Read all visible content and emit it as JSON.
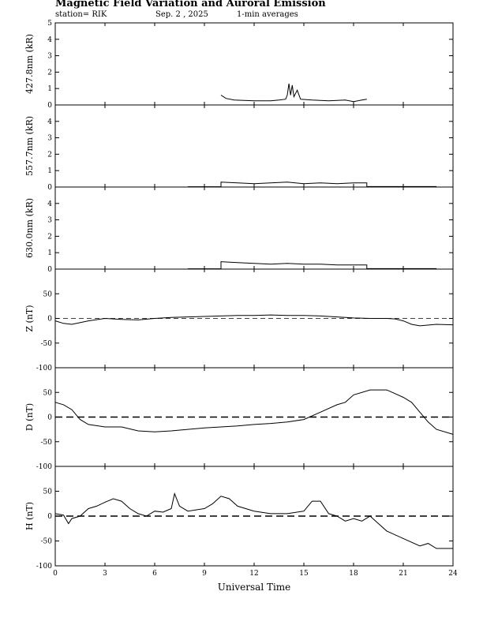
{
  "header": {
    "title": "Magnetic Field Variation and Auroral Emission",
    "station": "station= RIK",
    "date": "Sep. 2 , 2025",
    "averaging": "1-min averages"
  },
  "chart_data": [
    {
      "type": "line",
      "ylabel": "427.8nm (kR)",
      "ylim": [
        0,
        5
      ],
      "yticks": [
        0,
        1,
        2,
        3,
        4,
        5
      ],
      "xlim": [
        0,
        24
      ],
      "series": [
        {
          "values": [
            [
              10.0,
              0.6
            ],
            [
              10.3,
              0.4
            ],
            [
              10.8,
              0.3
            ],
            [
              12,
              0.25
            ],
            [
              13,
              0.25
            ],
            [
              13.5,
              0.3
            ],
            [
              13.9,
              0.35
            ],
            [
              14.0,
              0.6
            ],
            [
              14.1,
              1.3
            ],
            [
              14.2,
              0.6
            ],
            [
              14.3,
              1.2
            ],
            [
              14.4,
              0.5
            ],
            [
              14.6,
              0.9
            ],
            [
              14.8,
              0.35
            ],
            [
              15.5,
              0.3
            ],
            [
              16.5,
              0.25
            ],
            [
              17.5,
              0.3
            ],
            [
              18.0,
              0.2
            ],
            [
              18.5,
              0.3
            ],
            [
              18.8,
              0.35
            ]
          ]
        }
      ]
    },
    {
      "type": "line",
      "ylabel": "557.7nm (kR)",
      "ylim": [
        0,
        5
      ],
      "yticks": [
        0,
        1,
        2,
        3,
        4
      ],
      "xlim": [
        0,
        24
      ],
      "series": [
        {
          "values": [
            [
              8.0,
              0.02
            ],
            [
              10.0,
              0.02
            ],
            [
              10.0,
              0.3
            ],
            [
              11,
              0.25
            ],
            [
              12,
              0.2
            ],
            [
              13,
              0.25
            ],
            [
              14,
              0.3
            ],
            [
              15,
              0.2
            ],
            [
              16,
              0.25
            ],
            [
              17,
              0.2
            ],
            [
              18,
              0.25
            ],
            [
              18.8,
              0.25
            ],
            [
              18.8,
              0.03
            ],
            [
              23.0,
              0.03
            ]
          ]
        }
      ]
    },
    {
      "type": "line",
      "ylabel": "630.0nm (kR)",
      "ylim": [
        0,
        5
      ],
      "yticks": [
        0,
        1,
        2,
        3,
        4
      ],
      "xlim": [
        0,
        24
      ],
      "series": [
        {
          "values": [
            [
              8.0,
              0.02
            ],
            [
              10.0,
              0.02
            ],
            [
              10.0,
              0.45
            ],
            [
              11,
              0.4
            ],
            [
              12,
              0.35
            ],
            [
              13,
              0.3
            ],
            [
              14,
              0.35
            ],
            [
              15,
              0.3
            ],
            [
              16,
              0.3
            ],
            [
              17,
              0.25
            ],
            [
              18,
              0.25
            ],
            [
              18.8,
              0.25
            ],
            [
              18.8,
              0.03
            ],
            [
              23.0,
              0.03
            ]
          ]
        }
      ]
    },
    {
      "type": "line",
      "ylabel": "Z (nT)",
      "ylim": [
        -100,
        100
      ],
      "yticks": [
        -100,
        -50,
        0,
        50
      ],
      "xlim": [
        0,
        24
      ],
      "zero_line": "dashed",
      "series": [
        {
          "values": [
            [
              0,
              -5
            ],
            [
              0.5,
              -10
            ],
            [
              1,
              -12
            ],
            [
              2,
              -5
            ],
            [
              3,
              0
            ],
            [
              4,
              -2
            ],
            [
              5,
              -3
            ],
            [
              6,
              0
            ],
            [
              7,
              2
            ],
            [
              8,
              3
            ],
            [
              9,
              4
            ],
            [
              10,
              5
            ],
            [
              11,
              6
            ],
            [
              12,
              6
            ],
            [
              13,
              7
            ],
            [
              14,
              6
            ],
            [
              15,
              6
            ],
            [
              16,
              5
            ],
            [
              17,
              3
            ],
            [
              18,
              1
            ],
            [
              19,
              0
            ],
            [
              20,
              0
            ],
            [
              20.5,
              -1
            ],
            [
              21,
              -5
            ],
            [
              21.5,
              -12
            ],
            [
              22,
              -15
            ],
            [
              23,
              -12
            ],
            [
              24,
              -13
            ]
          ]
        }
      ]
    },
    {
      "type": "line",
      "ylabel": "D (nT)",
      "ylim": [
        -100,
        100
      ],
      "yticks": [
        -100,
        -50,
        0,
        50
      ],
      "xlim": [
        0,
        24
      ],
      "zero_line": "dashed",
      "series": [
        {
          "values": [
            [
              0,
              30
            ],
            [
              0.5,
              25
            ],
            [
              1,
              15
            ],
            [
              1.5,
              -5
            ],
            [
              2,
              -15
            ],
            [
              3,
              -20
            ],
            [
              4,
              -20
            ],
            [
              5,
              -28
            ],
            [
              6,
              -30
            ],
            [
              7,
              -28
            ],
            [
              8,
              -25
            ],
            [
              9,
              -22
            ],
            [
              10,
              -20
            ],
            [
              11,
              -18
            ],
            [
              12,
              -15
            ],
            [
              13,
              -13
            ],
            [
              14,
              -10
            ],
            [
              15,
              -5
            ],
            [
              16,
              10
            ],
            [
              17,
              25
            ],
            [
              17.5,
              30
            ],
            [
              18,
              45
            ],
            [
              19,
              55
            ],
            [
              20,
              55
            ],
            [
              21,
              40
            ],
            [
              21.5,
              30
            ],
            [
              22,
              10
            ],
            [
              22.5,
              -10
            ],
            [
              23,
              -25
            ],
            [
              24,
              -35
            ]
          ]
        }
      ]
    },
    {
      "type": "line",
      "ylabel": "H (nT)",
      "ylim": [
        -100,
        100
      ],
      "yticks": [
        -100,
        -50,
        0,
        50
      ],
      "xlim": [
        0,
        24
      ],
      "zero_line": "dashed",
      "series": [
        {
          "values": [
            [
              0,
              5
            ],
            [
              0.5,
              2
            ],
            [
              0.8,
              -15
            ],
            [
              1,
              -5
            ],
            [
              1.5,
              0
            ],
            [
              2,
              15
            ],
            [
              2.5,
              20
            ],
            [
              3,
              28
            ],
            [
              3.5,
              35
            ],
            [
              4,
              30
            ],
            [
              4.5,
              15
            ],
            [
              5,
              5
            ],
            [
              5.5,
              0
            ],
            [
              6,
              10
            ],
            [
              6.5,
              8
            ],
            [
              7,
              15
            ],
            [
              7.2,
              45
            ],
            [
              7.5,
              20
            ],
            [
              8,
              10
            ],
            [
              9,
              15
            ],
            [
              9.5,
              25
            ],
            [
              10,
              40
            ],
            [
              10.5,
              35
            ],
            [
              11,
              20
            ],
            [
              12,
              10
            ],
            [
              13,
              5
            ],
            [
              14,
              5
            ],
            [
              15,
              10
            ],
            [
              15.5,
              30
            ],
            [
              16,
              30
            ],
            [
              16.5,
              5
            ],
            [
              17,
              0
            ],
            [
              17.5,
              -10
            ],
            [
              18,
              -5
            ],
            [
              18.5,
              -10
            ],
            [
              19,
              0
            ],
            [
              19.5,
              -15
            ],
            [
              20,
              -30
            ],
            [
              21,
              -45
            ],
            [
              22,
              -60
            ],
            [
              22.5,
              -55
            ],
            [
              23,
              -65
            ],
            [
              24,
              -65
            ]
          ]
        }
      ]
    }
  ],
  "x_axis": {
    "label": "Universal Time",
    "ticks": [
      0,
      3,
      6,
      9,
      12,
      15,
      18,
      21,
      24
    ]
  }
}
